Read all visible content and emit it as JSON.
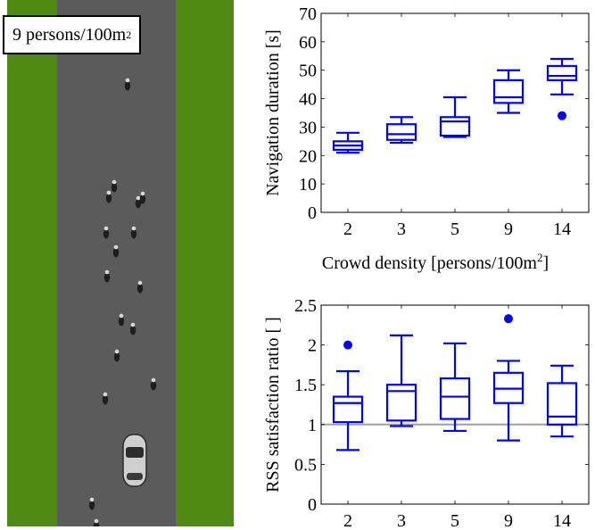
{
  "scene": {
    "label_prefix": "9 persons/100m",
    "label_sup": "2",
    "colors": {
      "grass": "#4f8a12",
      "road": "#5b5b5b"
    }
  },
  "chart_data": [
    {
      "type": "box",
      "title": "",
      "xlabel_prefix": "Crowd density [persons/100m",
      "xlabel_sup": "2",
      "xlabel_suffix": "]",
      "ylabel": "Navigation duration [s]",
      "categories": [
        "2",
        "3",
        "5",
        "9",
        "14"
      ],
      "ylim": [
        0,
        70
      ],
      "yticks": [
        0,
        10,
        20,
        30,
        40,
        50,
        60,
        70
      ],
      "color": "#0000ff",
      "boxes": [
        {
          "min": 21,
          "q1": 22,
          "median": 23.5,
          "q3": 25,
          "max": 28,
          "outliers": []
        },
        {
          "min": 24.5,
          "q1": 25.5,
          "median": 27.5,
          "q3": 31,
          "max": 33.5,
          "outliers": []
        },
        {
          "min": 26.5,
          "q1": 27,
          "median": 32,
          "q3": 33.5,
          "max": 40.5,
          "outliers": []
        },
        {
          "min": 35,
          "q1": 38.5,
          "median": 40.5,
          "q3": 46.5,
          "max": 50,
          "outliers": []
        },
        {
          "min": 41.5,
          "q1": 46.5,
          "median": 48,
          "q3": 51.5,
          "max": 54,
          "outliers": [
            34
          ]
        }
      ]
    },
    {
      "type": "box",
      "title": "",
      "xlabel_prefix": "",
      "ylabel": "RSS satisfaction ratio [ ]",
      "categories": [
        "2",
        "3",
        "5",
        "9",
        "14"
      ],
      "ylim": [
        0,
        2.5
      ],
      "yticks": [
        0,
        0.5,
        1,
        1.5,
        2,
        2.5
      ],
      "yticklabels": [
        "0",
        "0.5",
        "1",
        "1.5",
        "2",
        "2.5"
      ],
      "reference_line": 1,
      "color": "#0000ff",
      "boxes": [
        {
          "min": 0.68,
          "q1": 1.03,
          "median": 1.27,
          "q3": 1.35,
          "max": 1.67,
          "outliers": [
            2.0
          ]
        },
        {
          "min": 0.98,
          "q1": 1.05,
          "median": 1.42,
          "q3": 1.5,
          "max": 2.12,
          "outliers": []
        },
        {
          "min": 0.92,
          "q1": 1.07,
          "median": 1.35,
          "q3": 1.58,
          "max": 2.02,
          "outliers": []
        },
        {
          "min": 0.8,
          "q1": 1.27,
          "median": 1.45,
          "q3": 1.65,
          "max": 1.8,
          "outliers": [
            2.33
          ]
        },
        {
          "min": 0.85,
          "q1": 1.0,
          "median": 1.1,
          "q3": 1.52,
          "max": 1.74,
          "outliers": []
        }
      ]
    }
  ]
}
